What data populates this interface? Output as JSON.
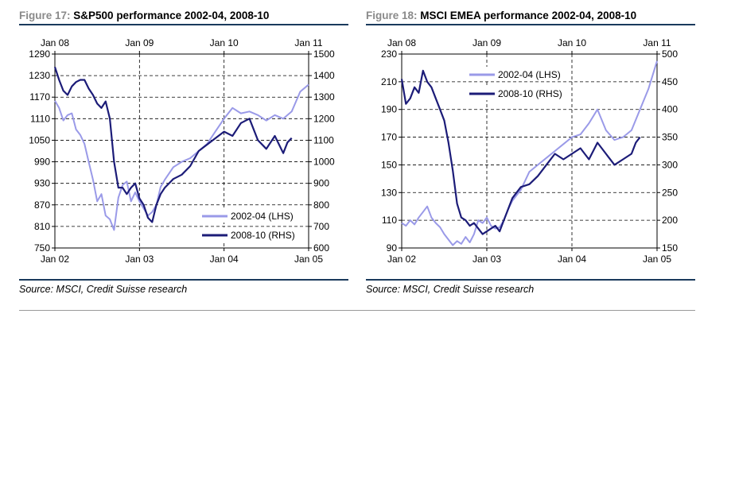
{
  "figures": [
    {
      "number_label": "Figure 17:",
      "title": "S&P500 performance 2002-04, 2008-10",
      "source": "Source: MSCI, Credit Suisse research"
    },
    {
      "number_label": "Figure 18:",
      "title": "MSCI EMEA performance 2002-04, 2008-10",
      "source": "Source: MSCI, Credit Suisse research"
    }
  ],
  "chart_data": [
    {
      "type": "line",
      "title": "S&P500 performance 2002-04, 2008-10",
      "x_bottom_ticks": [
        "Jan 02",
        "Jan 03",
        "Jan 04",
        "Jan 05"
      ],
      "x_top_ticks": [
        "Jan 08",
        "Jan 09",
        "Jan 10",
        "Jan 11"
      ],
      "y_left_ticks": [
        "1290",
        "1230",
        "1170",
        "1110",
        "1050",
        "990",
        "930",
        "870",
        "810",
        "750"
      ],
      "y_right_ticks": [
        "1500",
        "1400",
        "1300",
        "1200",
        "1100",
        "1000",
        "900",
        "800",
        "700",
        "600"
      ],
      "ylim_left": [
        750,
        1290
      ],
      "ylim_right": [
        600,
        1500
      ],
      "grid": true,
      "legend_position": "bottom-right",
      "colors": {
        "lhs": "#9a9ae8",
        "rhs": "#1c1c78"
      },
      "series": [
        {
          "name": "2002-04 (LHS)",
          "axis": "left",
          "x": [
            2002.0,
            2002.05,
            2002.1,
            2002.15,
            2002.2,
            2002.25,
            2002.3,
            2002.35,
            2002.4,
            2002.45,
            2002.5,
            2002.55,
            2002.6,
            2002.65,
            2002.7,
            2002.75,
            2002.8,
            2002.85,
            2002.9,
            2002.95,
            2003.0,
            2003.05,
            2003.1,
            2003.15,
            2003.2,
            2003.25,
            2003.3,
            2003.4,
            2003.5,
            2003.6,
            2003.7,
            2003.8,
            2003.9,
            2004.0,
            2004.1,
            2004.2,
            2004.3,
            2004.4,
            2004.5,
            2004.6,
            2004.7,
            2004.8,
            2004.9,
            2005.0
          ],
          "y": [
            1160,
            1140,
            1105,
            1120,
            1125,
            1080,
            1065,
            1040,
            990,
            940,
            880,
            900,
            840,
            830,
            800,
            890,
            925,
            935,
            880,
            905,
            880,
            860,
            840,
            850,
            870,
            920,
            940,
            975,
            990,
            1000,
            1020,
            1040,
            1075,
            1110,
            1140,
            1125,
            1130,
            1120,
            1105,
            1120,
            1110,
            1130,
            1185,
            1205
          ]
        },
        {
          "name": "2008-10 (RHS)",
          "axis": "right",
          "x": [
            2008.0,
            2008.05,
            2008.1,
            2008.15,
            2008.2,
            2008.25,
            2008.3,
            2008.35,
            2008.4,
            2008.45,
            2008.5,
            2008.55,
            2008.6,
            2008.65,
            2008.7,
            2008.75,
            2008.8,
            2008.85,
            2008.9,
            2008.95,
            2009.0,
            2009.05,
            2009.1,
            2009.15,
            2009.2,
            2009.25,
            2009.3,
            2009.4,
            2009.5,
            2009.6,
            2009.7,
            2009.8,
            2009.9,
            2010.0,
            2010.1,
            2010.2,
            2010.3,
            2010.4,
            2010.5,
            2010.6,
            2010.7,
            2010.75,
            2010.8
          ],
          "y": [
            1440,
            1380,
            1330,
            1310,
            1350,
            1370,
            1380,
            1380,
            1340,
            1310,
            1270,
            1250,
            1280,
            1200,
            1000,
            880,
            880,
            850,
            880,
            900,
            830,
            800,
            740,
            720,
            800,
            850,
            880,
            920,
            940,
            980,
            1050,
            1080,
            1110,
            1140,
            1120,
            1180,
            1200,
            1100,
            1060,
            1120,
            1040,
            1090,
            1110
          ]
        }
      ]
    },
    {
      "type": "line",
      "title": "MSCI EMEA performance 2002-04, 2008-10",
      "x_bottom_ticks": [
        "Jan 02",
        "Jan 03",
        "Jan 04",
        "Jan 05"
      ],
      "x_top_ticks": [
        "Jan 08",
        "Jan 09",
        "Jan 10",
        "Jan 11"
      ],
      "y_left_ticks": [
        "230",
        "210",
        "190",
        "170",
        "150",
        "130",
        "110",
        "90"
      ],
      "y_right_ticks": [
        "500",
        "450",
        "400",
        "350",
        "300",
        "250",
        "200",
        "150"
      ],
      "ylim_left": [
        90,
        230
      ],
      "ylim_right": [
        150,
        500
      ],
      "grid": true,
      "legend_position": "top-left",
      "colors": {
        "lhs": "#9a9ae8",
        "rhs": "#1c1c78"
      },
      "series": [
        {
          "name": "2002-04 (LHS)",
          "axis": "left",
          "x": [
            2002.0,
            2002.05,
            2002.1,
            2002.15,
            2002.2,
            2002.25,
            2002.3,
            2002.35,
            2002.4,
            2002.45,
            2002.5,
            2002.55,
            2002.6,
            2002.65,
            2002.7,
            2002.75,
            2002.8,
            2002.85,
            2002.9,
            2002.95,
            2003.0,
            2003.05,
            2003.1,
            2003.15,
            2003.2,
            2003.25,
            2003.3,
            2003.4,
            2003.5,
            2003.6,
            2003.7,
            2003.8,
            2003.9,
            2004.0,
            2004.1,
            2004.2,
            2004.3,
            2004.4,
            2004.5,
            2004.6,
            2004.7,
            2004.8,
            2004.9,
            2005.0
          ],
          "y": [
            108,
            106,
            110,
            107,
            112,
            116,
            120,
            112,
            108,
            105,
            100,
            96,
            92,
            95,
            93,
            98,
            94,
            100,
            110,
            108,
            112,
            106,
            104,
            105,
            110,
            118,
            124,
            132,
            145,
            150,
            155,
            160,
            165,
            170,
            172,
            180,
            190,
            175,
            168,
            170,
            175,
            190,
            205,
            225
          ]
        },
        {
          "name": "2008-10 (RHS)",
          "axis": "right",
          "x": [
            2008.0,
            2008.05,
            2008.1,
            2008.15,
            2008.2,
            2008.25,
            2008.3,
            2008.35,
            2008.4,
            2008.45,
            2008.5,
            2008.55,
            2008.6,
            2008.65,
            2008.7,
            2008.75,
            2008.8,
            2008.85,
            2008.9,
            2008.95,
            2009.0,
            2009.05,
            2009.1,
            2009.15,
            2009.2,
            2009.25,
            2009.3,
            2009.4,
            2009.5,
            2009.6,
            2009.7,
            2009.8,
            2009.9,
            2010.0,
            2010.1,
            2010.2,
            2010.3,
            2010.4,
            2010.5,
            2010.6,
            2010.7,
            2010.75,
            2010.8
          ],
          "y": [
            455,
            410,
            420,
            440,
            430,
            470,
            450,
            440,
            420,
            400,
            380,
            340,
            290,
            230,
            205,
            200,
            190,
            195,
            185,
            175,
            180,
            185,
            190,
            180,
            200,
            220,
            240,
            260,
            265,
            280,
            300,
            320,
            310,
            320,
            330,
            310,
            340,
            320,
            300,
            310,
            320,
            340,
            350
          ]
        }
      ]
    }
  ]
}
